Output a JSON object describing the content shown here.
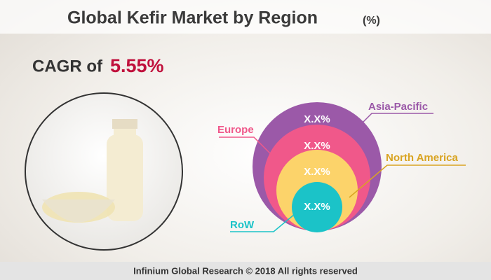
{
  "header": {
    "title": "Global Kefir Market by Region",
    "unit": "(%)"
  },
  "cagr": {
    "label": "CAGR of",
    "value": "5.55%"
  },
  "regions": [
    {
      "name": "Asia-Pacific",
      "label": "X.X%"
    },
    {
      "name": "Europe",
      "label": "X.X%"
    },
    {
      "name": "North America",
      "label": "X.X%"
    },
    {
      "name": "RoW",
      "label": "X.X%"
    }
  ],
  "footer": "Infinium Global Research © 2018 All rights reserved"
}
